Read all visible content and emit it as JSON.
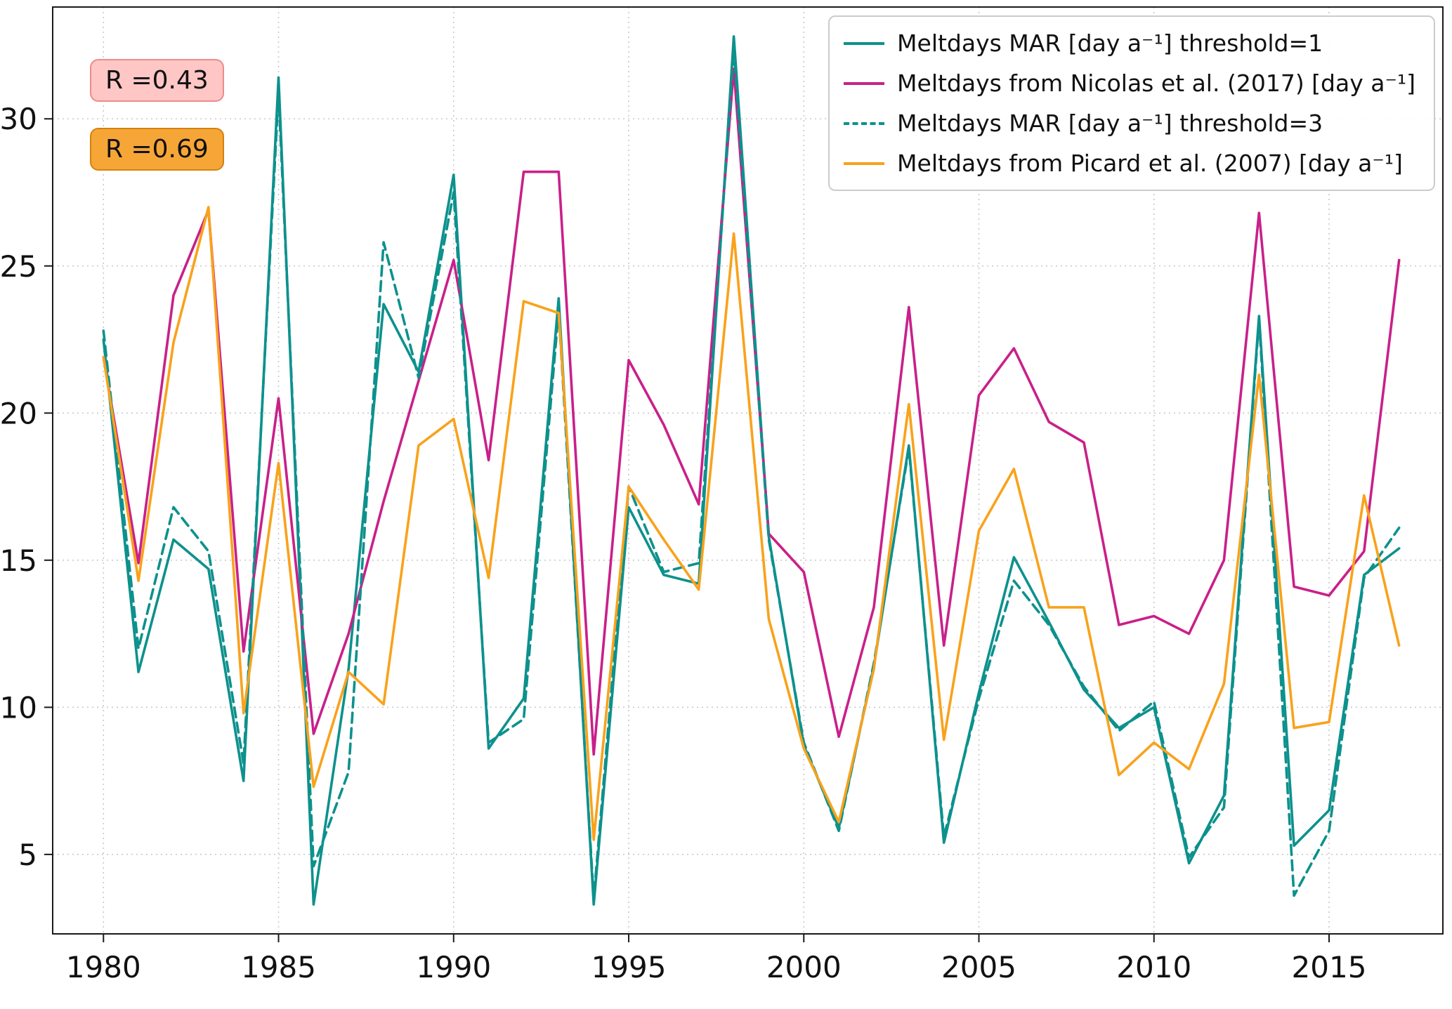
{
  "chart_data": {
    "type": "line",
    "title": "",
    "xlabel": "",
    "ylabel": "",
    "grid": "dotted",
    "legend_position": "upper right",
    "xlim": [
      1978.55,
      2018.25
    ],
    "ylim": [
      2.3,
      33.8
    ],
    "xticks": [
      1980,
      1985,
      1990,
      1995,
      2000,
      2005,
      2010,
      2015
    ],
    "yticks": [
      5,
      10,
      15,
      20,
      25,
      30
    ],
    "x": [
      1980,
      1981,
      1982,
      1983,
      1984,
      1985,
      1986,
      1987,
      1988,
      1989,
      1990,
      1991,
      1992,
      1993,
      1994,
      1995,
      1996,
      1997,
      1998,
      1999,
      2000,
      2001,
      2002,
      2003,
      2004,
      2005,
      2006,
      2007,
      2008,
      2009,
      2010,
      2011,
      2012,
      2013,
      2014,
      2015,
      2016,
      2017
    ],
    "series": [
      {
        "label": "Meltdays MAR [day a⁻¹] threshold=1",
        "color": "#0d918d",
        "style": "solid",
        "values": [
          22.5,
          11.2,
          15.7,
          14.7,
          7.5,
          31.4,
          3.3,
          11.3,
          23.7,
          21.4,
          28.1,
          8.6,
          10.3,
          23.9,
          3.3,
          16.8,
          14.5,
          14.2,
          32.8,
          15.8,
          8.7,
          5.9,
          11.4,
          18.9,
          5.4,
          10.5,
          15.1,
          12.9,
          10.6,
          9.3,
          10.0,
          4.7,
          7.0,
          23.3,
          5.3,
          6.5,
          14.5,
          15.4
        ]
      },
      {
        "label": "Meltdays from Nicolas et al. (2017) [day a⁻¹]",
        "color": "#c9208a",
        "style": "solid",
        "values": [
          21.9,
          14.9,
          24.0,
          26.9,
          11.9,
          20.5,
          9.1,
          12.5,
          17.0,
          21.1,
          25.2,
          18.4,
          28.2,
          28.2,
          8.4,
          21.8,
          19.6,
          16.9,
          31.7,
          15.9,
          14.6,
          9.0,
          13.4,
          23.6,
          12.1,
          20.6,
          22.2,
          19.7,
          19.0,
          12.8,
          13.1,
          12.5,
          15.0,
          26.8,
          14.1,
          13.8,
          15.3,
          25.2
        ]
      },
      {
        "label": "Meltdays MAR [day a⁻¹] threshold=3",
        "color": "#0d918d",
        "style": "dashed",
        "values": [
          22.8,
          12.0,
          16.8,
          15.3,
          8.1,
          30.9,
          4.6,
          7.8,
          25.8,
          21.2,
          27.5,
          8.8,
          9.6,
          23.5,
          3.5,
          17.5,
          14.6,
          14.9,
          32.4,
          15.7,
          8.8,
          5.8,
          11.5,
          18.8,
          5.6,
          10.3,
          14.3,
          12.8,
          10.7,
          9.2,
          10.2,
          4.9,
          6.6,
          23.2,
          3.6,
          5.8,
          14.4,
          16.1
        ]
      },
      {
        "label": "Meltdays from Picard et al. (2007) [day a⁻¹]",
        "color": "#f9a21b",
        "style": "solid",
        "values": [
          21.9,
          14.3,
          22.4,
          27.0,
          9.8,
          18.3,
          7.3,
          11.2,
          10.1,
          18.9,
          19.8,
          14.4,
          23.8,
          23.4,
          5.5,
          17.5,
          15.7,
          14.0,
          26.1,
          13.0,
          8.6,
          6.1,
          11.3,
          20.3,
          8.9,
          16.0,
          18.1,
          13.4,
          13.4,
          7.7,
          8.8,
          7.9,
          10.8,
          21.3,
          9.3,
          9.5,
          17.2,
          12.1
        ]
      }
    ],
    "annotations": [
      {
        "text": "R =0.43",
        "fill": "#ffc6c6",
        "stroke": "#ef8a8a"
      },
      {
        "text": "R =0.69",
        "fill": "#f6a637",
        "stroke": "#d4820e"
      }
    ]
  }
}
